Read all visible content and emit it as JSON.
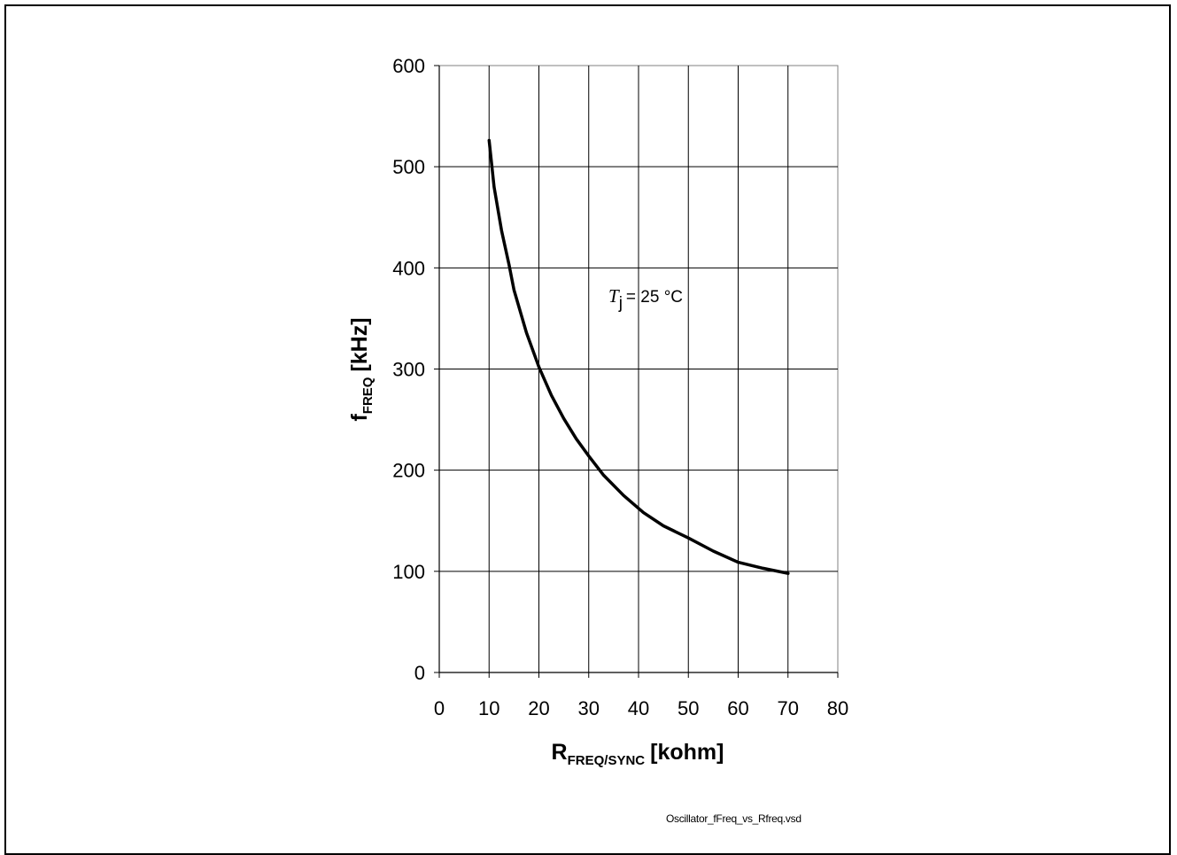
{
  "chart_data": {
    "type": "line",
    "x_label": {
      "main": "R",
      "sub": "FREQ/SYNC",
      "unit": "[kohm]"
    },
    "y_label": {
      "main": "f",
      "sub": "FREQ",
      "unit": "[kHz]"
    },
    "xlim": [
      0,
      80
    ],
    "ylim": [
      0,
      600
    ],
    "x_ticks": [
      "0",
      "10",
      "20",
      "30",
      "40",
      "50",
      "60",
      "70",
      "80"
    ],
    "y_ticks": [
      "0",
      "100",
      "200",
      "300",
      "400",
      "500",
      "600"
    ],
    "grid": true,
    "annotation": {
      "symbol": "T",
      "subscript": "j",
      "text": "= 25 °C"
    },
    "series": [
      {
        "x": [
          10,
          11,
          12.5,
          14,
          15,
          17.5,
          20,
          22.5,
          25,
          27.5,
          30,
          33,
          37,
          41,
          45,
          50,
          55,
          60,
          65,
          70
        ],
        "y": [
          526,
          480,
          437,
          403,
          378,
          336,
          302,
          274,
          251,
          231,
          214,
          195,
          175,
          158,
          145,
          133,
          120,
          109,
          103,
          98
        ]
      }
    ]
  },
  "footer": {
    "source_file": "Oscillator_fFreq_vs_Rfreq.vsd"
  }
}
